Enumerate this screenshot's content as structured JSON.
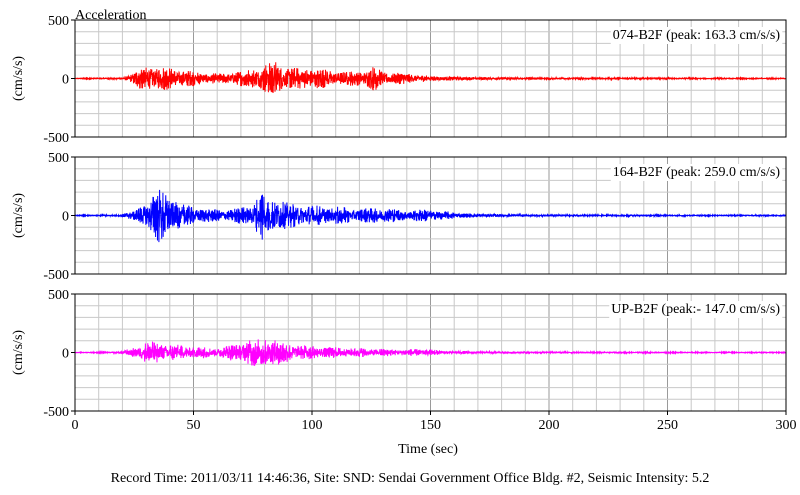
{
  "top_label": "Acceleration",
  "footer": "Record Time: 2011/03/11 14:46:36, Site: SND: Sendai Government Office Bldg. #2, Seismic Intensity: 5.2",
  "chart_data": {
    "type": "line",
    "xlabel": "Time (sec)",
    "xlim": [
      0,
      300
    ],
    "x_ticks": [
      0,
      50,
      100,
      150,
      200,
      250,
      300
    ],
    "x_tick_labels": [
      "0",
      "50",
      "100",
      "150",
      "200",
      "250",
      "300"
    ],
    "grid": true,
    "panels": [
      {
        "label": "074-B2F (peak: 163.3 cm/s/s)",
        "ylabel": "(cm/s/s)",
        "ylim": [
          -500,
          500
        ],
        "y_ticks": [
          -500,
          0,
          500
        ],
        "y_tick_labels": [
          "-500",
          "0",
          "500"
        ],
        "color": "#ff0000",
        "peak": 163.3,
        "envelope": [
          [
            0,
            3
          ],
          [
            20,
            8
          ],
          [
            25,
            60
          ],
          [
            28,
            100
          ],
          [
            32,
            110
          ],
          [
            38,
            100
          ],
          [
            45,
            80
          ],
          [
            55,
            50
          ],
          [
            62,
            45
          ],
          [
            70,
            70
          ],
          [
            78,
            110
          ],
          [
            80,
            140
          ],
          [
            84,
            163
          ],
          [
            88,
            110
          ],
          [
            95,
            90
          ],
          [
            100,
            110
          ],
          [
            105,
            80
          ],
          [
            115,
            60
          ],
          [
            122,
            75
          ],
          [
            126,
            110
          ],
          [
            130,
            60
          ],
          [
            140,
            45
          ],
          [
            150,
            25
          ],
          [
            160,
            18
          ],
          [
            180,
            12
          ],
          [
            200,
            9
          ],
          [
            250,
            6
          ],
          [
            300,
            5
          ]
        ]
      },
      {
        "label": "164-B2F (peak: 259.0 cm/s/s)",
        "ylabel": "(cm/s/s)",
        "ylim": [
          -500,
          500
        ],
        "y_ticks": [
          -500,
          0,
          500
        ],
        "y_tick_labels": [
          "-500",
          "0",
          "500"
        ],
        "color": "#0000ff",
        "peak": 259.0,
        "envelope": [
          [
            0,
            3
          ],
          [
            18,
            8
          ],
          [
            25,
            40
          ],
          [
            30,
            130
          ],
          [
            34,
            200
          ],
          [
            36,
            259
          ],
          [
            40,
            180
          ],
          [
            45,
            100
          ],
          [
            55,
            60
          ],
          [
            65,
            50
          ],
          [
            75,
            100
          ],
          [
            79,
            240
          ],
          [
            82,
            180
          ],
          [
            90,
            110
          ],
          [
            100,
            90
          ],
          [
            110,
            80
          ],
          [
            120,
            60
          ],
          [
            128,
            70
          ],
          [
            140,
            50
          ],
          [
            150,
            55
          ],
          [
            155,
            40
          ],
          [
            165,
            20
          ],
          [
            180,
            12
          ],
          [
            200,
            9
          ],
          [
            250,
            6
          ],
          [
            300,
            5
          ]
        ]
      },
      {
        "label": "UP-B2F (peak:- 147.0 cm/s/s)",
        "ylabel": "(cm/s/s)",
        "ylim": [
          -500,
          500
        ],
        "y_ticks": [
          -500,
          0,
          500
        ],
        "y_tick_labels": [
          "-500",
          "0",
          "500"
        ],
        "color": "#ff00ff",
        "peak": 147.0,
        "envelope": [
          [
            0,
            3
          ],
          [
            18,
            6
          ],
          [
            25,
            50
          ],
          [
            30,
            90
          ],
          [
            35,
            100
          ],
          [
            42,
            70
          ],
          [
            50,
            55
          ],
          [
            60,
            40
          ],
          [
            68,
            80
          ],
          [
            75,
            120
          ],
          [
            80,
            147
          ],
          [
            85,
            110
          ],
          [
            95,
            70
          ],
          [
            105,
            50
          ],
          [
            120,
            40
          ],
          [
            135,
            30
          ],
          [
            150,
            30
          ],
          [
            155,
            18
          ],
          [
            170,
            10
          ],
          [
            200,
            7
          ],
          [
            250,
            5
          ],
          [
            300,
            4
          ]
        ]
      }
    ]
  }
}
